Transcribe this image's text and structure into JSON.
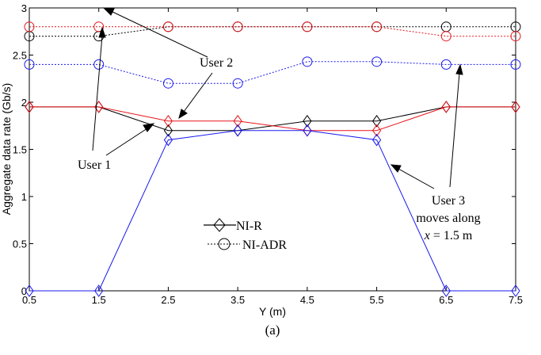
{
  "chart_data": {
    "type": "line",
    "xlabel": "Y (m)",
    "ylabel": "Aggregate data rate (Gb/s)",
    "caption": "(a)",
    "xlim": [
      0.5,
      7.5
    ],
    "ylim": [
      0,
      3
    ],
    "x_ticks": [
      "0.5",
      "1.5",
      "2.5",
      "3.5",
      "4.5",
      "5.5",
      "6.5",
      "7.5"
    ],
    "y_ticks": [
      "0",
      "0.5",
      "1",
      "1.5",
      "2",
      "2.5",
      "3"
    ],
    "x": [
      0.5,
      1.5,
      2.5,
      3.5,
      4.5,
      5.5,
      6.5,
      7.5
    ],
    "grid": false,
    "series": [
      {
        "color": "#000000",
        "dash": "solid",
        "marker": "diamond",
        "values": [
          1.95,
          1.95,
          1.7,
          1.7,
          1.8,
          1.8,
          1.95,
          1.95
        ]
      },
      {
        "color": "#e8141a",
        "dash": "solid",
        "marker": "diamond",
        "values": [
          1.95,
          1.95,
          1.8,
          1.8,
          1.7,
          1.7,
          1.95,
          1.95
        ]
      },
      {
        "color": "#1a1aee",
        "dash": "solid",
        "marker": "diamond",
        "values": [
          0.0,
          0.0,
          1.6,
          1.7,
          1.7,
          1.6,
          0.0,
          0.0
        ]
      },
      {
        "color": "#000000",
        "dash": "dotted",
        "marker": "circle",
        "values": [
          2.7,
          2.7,
          2.8,
          2.8,
          2.8,
          2.8,
          2.8,
          2.8
        ]
      },
      {
        "color": "#e8141a",
        "dash": "dotted",
        "marker": "circle",
        "values": [
          2.8,
          2.8,
          2.8,
          2.8,
          2.8,
          2.8,
          2.7,
          2.7
        ]
      },
      {
        "color": "#1a1aee",
        "dash": "dotted",
        "marker": "circle",
        "values": [
          2.4,
          2.4,
          2.2,
          2.2,
          2.43,
          2.43,
          2.4,
          2.4
        ]
      }
    ],
    "legend": {
      "placement": "center",
      "entries": [
        {
          "label": "NI-R",
          "marker": "diamond",
          "dash": "solid"
        },
        {
          "label": "NI-ADR",
          "marker": "circle",
          "dash": "dotted"
        }
      ]
    },
    "annotations": {
      "user1": "User 1",
      "user2": "User 2",
      "user3_line1": "User 3",
      "user3_line2": "moves along",
      "user3_line3_var": "x",
      "user3_line3_rest": " = 1.5 m"
    }
  }
}
